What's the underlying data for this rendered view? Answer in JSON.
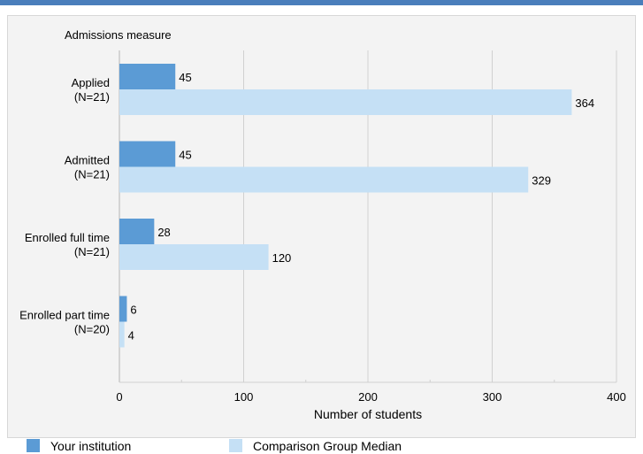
{
  "colors": {
    "accent_bar": "#4a7ebb",
    "series_primary": "#5b9bd5",
    "series_secondary": "#c5e0f5",
    "grid": "#d0d0d0",
    "background": "#f3f3f3"
  },
  "chart_data": {
    "type": "bar",
    "orientation": "horizontal",
    "category_axis_title": "Admissions measure",
    "xlabel": "Number of students",
    "xlim": [
      0,
      400
    ],
    "xticks": [
      0,
      100,
      200,
      300,
      400
    ],
    "grid": true,
    "legend_position": "bottom",
    "categories": [
      [
        "Applied",
        "(N=21)"
      ],
      [
        "Admitted",
        "(N=21)"
      ],
      [
        "Enrolled full time",
        "(N=21)"
      ],
      [
        "Enrolled part time",
        "(N=20)"
      ]
    ],
    "series": [
      {
        "name": "Your institution",
        "values": [
          45,
          45,
          28,
          6
        ]
      },
      {
        "name": "Comparison Group Median",
        "values": [
          364,
          329,
          120,
          4
        ]
      }
    ]
  }
}
